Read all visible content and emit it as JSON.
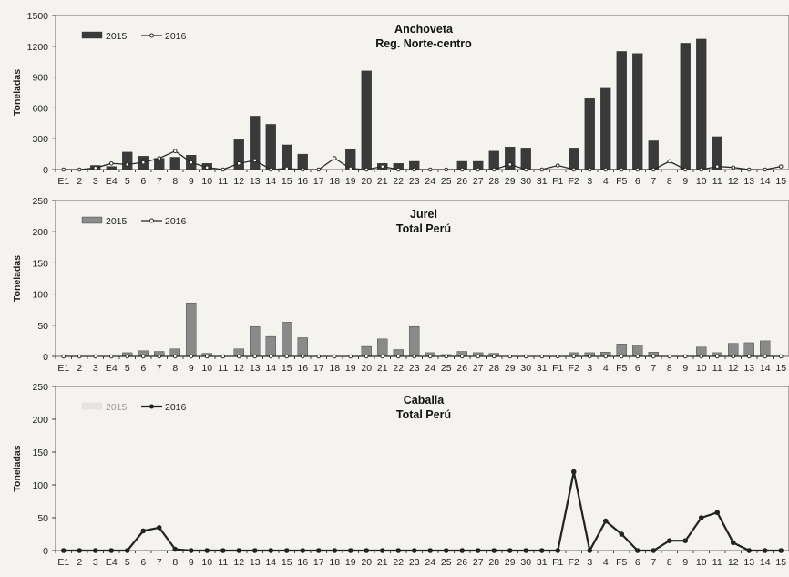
{
  "categories": [
    "E1",
    "2",
    "3",
    "E4",
    "5",
    "6",
    "7",
    "8",
    "9",
    "10",
    "11",
    "12",
    "13",
    "14",
    "15",
    "16",
    "17",
    "18",
    "19",
    "20",
    "21",
    "22",
    "23",
    "24",
    "25",
    "26",
    "27",
    "28",
    "29",
    "30",
    "31",
    "F1",
    "F2",
    "3",
    "4",
    "F5",
    "6",
    "7",
    "8",
    "9",
    "10",
    "11",
    "12",
    "13",
    "14",
    "15"
  ],
  "chart_data": [
    {
      "type": "bar",
      "title": "Anchoveta",
      "subtitle": "Reg. Norte-centro",
      "ylabel": "Toneladas",
      "ylim": [
        0,
        1500
      ],
      "yticks": [
        0,
        300,
        600,
        900,
        1200,
        1500
      ],
      "legend_position": "top-left",
      "series": [
        {
          "name": "2015",
          "kind": "bar",
          "color": "#3a3a3a",
          "values": [
            0,
            0,
            40,
            30,
            170,
            130,
            110,
            120,
            140,
            60,
            0,
            290,
            520,
            440,
            240,
            150,
            0,
            0,
            200,
            960,
            60,
            60,
            80,
            0,
            0,
            80,
            80,
            180,
            220,
            210,
            0,
            0,
            210,
            690,
            800,
            1150,
            1130,
            280,
            0,
            1230,
            1270,
            320,
            0,
            0,
            0,
            0
          ]
        },
        {
          "name": "2016",
          "kind": "line",
          "color": "#2a2a2a",
          "values": [
            0,
            0,
            15,
            60,
            50,
            70,
            110,
            180,
            70,
            20,
            0,
            60,
            90,
            0,
            10,
            0,
            0,
            110,
            10,
            0,
            30,
            0,
            0,
            0,
            0,
            0,
            0,
            0,
            50,
            0,
            0,
            40,
            0,
            0,
            0,
            0,
            0,
            0,
            80,
            0,
            0,
            30,
            20,
            0,
            0,
            30
          ]
        }
      ]
    },
    {
      "type": "bar",
      "title": "Jurel",
      "subtitle": "Total Perú",
      "ylabel": "Toneladas",
      "ylim": [
        0,
        250
      ],
      "yticks": [
        0,
        50,
        100,
        150,
        200,
        250
      ],
      "legend_position": "top-left",
      "series": [
        {
          "name": "2015",
          "kind": "bar",
          "color": "#8a8a8a",
          "values": [
            0,
            0,
            0,
            0,
            6,
            9,
            8,
            12,
            86,
            5,
            0,
            12,
            48,
            32,
            55,
            30,
            0,
            0,
            0,
            16,
            28,
            11,
            48,
            6,
            3,
            8,
            6,
            5,
            0,
            0,
            0,
            0,
            6,
            6,
            7,
            20,
            18,
            7,
            0,
            0,
            15,
            6,
            21,
            22,
            25,
            0
          ]
        },
        {
          "name": "2016",
          "kind": "line",
          "color": "#2a2a2a",
          "values": [
            0,
            0,
            0,
            0,
            0,
            0,
            0,
            0,
            0,
            0,
            0,
            0,
            0,
            0,
            0,
            0,
            0,
            0,
            0,
            0,
            0,
            0,
            0,
            0,
            0,
            0,
            0,
            0,
            0,
            0,
            0,
            0,
            0,
            0,
            0,
            0,
            0,
            0,
            0,
            0,
            0,
            0,
            0,
            0,
            0,
            0
          ]
        }
      ]
    },
    {
      "type": "line",
      "title": "Caballa",
      "subtitle": "Total Perú",
      "ylabel": "Toneladas",
      "ylim": [
        0,
        250
      ],
      "yticks": [
        0,
        50,
        100,
        150,
        200,
        250
      ],
      "legend_position": "top-left",
      "series": [
        {
          "name": "2015",
          "kind": "bar",
          "color": "#e6e4de",
          "values": [
            0,
            0,
            0,
            0,
            0,
            0,
            0,
            0,
            0,
            0,
            0,
            0,
            0,
            0,
            0,
            0,
            0,
            0,
            0,
            0,
            0,
            0,
            0,
            0,
            0,
            0,
            0,
            0,
            0,
            0,
            0,
            0,
            0,
            0,
            0,
            0,
            0,
            0,
            0,
            0,
            0,
            0,
            0,
            0,
            0,
            0
          ]
        },
        {
          "name": "2016",
          "kind": "line",
          "color": "#222222",
          "values": [
            0,
            0,
            0,
            0,
            0,
            30,
            35,
            2,
            0,
            0,
            0,
            0,
            0,
            0,
            0,
            0,
            0,
            0,
            0,
            0,
            0,
            0,
            0,
            0,
            0,
            0,
            0,
            0,
            0,
            0,
            0,
            0,
            120,
            0,
            45,
            25,
            0,
            0,
            15,
            15,
            50,
            58,
            12,
            0,
            0,
            0
          ]
        }
      ]
    }
  ]
}
